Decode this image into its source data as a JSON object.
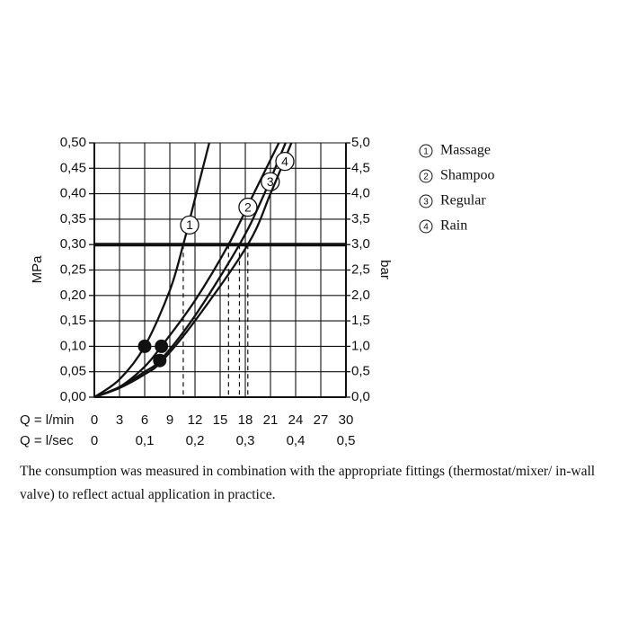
{
  "chart_data": {
    "type": "line",
    "y_label": "MPa",
    "y2_label": "bar",
    "x_label": "Q = l/min",
    "x2_label": "Q = l/sec",
    "xlim": [
      0,
      30
    ],
    "xticks": [
      0,
      3,
      6,
      9,
      12,
      15,
      18,
      21,
      24,
      27,
      30
    ],
    "x2lim": [
      0,
      0.5
    ],
    "x2ticks": [
      0,
      {
        "value": 0.1,
        "label": "0,1"
      },
      {
        "value": 0.2,
        "label": "0,2"
      },
      {
        "value": 0.3,
        "label": "0,3"
      },
      {
        "value": 0.4,
        "label": "0,4"
      },
      {
        "value": 0.5,
        "label": "0,5"
      }
    ],
    "ylim": [
      0,
      0.5
    ],
    "yticks": [
      {
        "value": 0,
        "label": "0,00"
      },
      {
        "value": 0.05,
        "label": "0,05"
      },
      {
        "value": 0.1,
        "label": "0,10"
      },
      {
        "value": 0.15,
        "label": "0,15"
      },
      {
        "value": 0.2,
        "label": "0,20"
      },
      {
        "value": 0.25,
        "label": "0,25"
      },
      {
        "value": 0.3,
        "label": "0,30"
      },
      {
        "value": 0.35,
        "label": "0,35"
      },
      {
        "value": 0.4,
        "label": "0,40"
      },
      {
        "value": 0.45,
        "label": "0,45"
      },
      {
        "value": 0.5,
        "label": "0,50"
      }
    ],
    "y2lim": [
      0,
      5
    ],
    "y2ticks": [
      {
        "value": 0,
        "label": "0,0"
      },
      {
        "value": 0.5,
        "label": "0,5"
      },
      {
        "value": 1,
        "label": "1,0"
      },
      {
        "value": 1.5,
        "label": "1,5"
      },
      {
        "value": 2,
        "label": "2,0"
      },
      {
        "value": 2.5,
        "label": "2,5"
      },
      {
        "value": 3,
        "label": "3,0"
      },
      {
        "value": 3.5,
        "label": "3,5"
      },
      {
        "value": 4,
        "label": "4,0"
      },
      {
        "value": 4.5,
        "label": "4,5"
      },
      {
        "value": 5,
        "label": "5,0"
      }
    ],
    "grid": true,
    "color": "#111111",
    "reference_line": 0.3,
    "dashed_x": [
      10.6,
      16,
      17.3,
      18.3
    ],
    "series": [
      {
        "name": "Massage",
        "label": "1",
        "x": [
          0,
          3,
          6,
          9,
          10.6,
          12,
          13.7
        ],
        "values": [
          0,
          0.035,
          0.1,
          0.21,
          0.3,
          0.39,
          0.5
        ]
      },
      {
        "name": "Shampoo",
        "label": "2",
        "x": [
          0,
          3,
          6,
          8,
          12,
          16,
          19,
          22
        ],
        "values": [
          0,
          0.02,
          0.06,
          0.1,
          0.19,
          0.3,
          0.4,
          0.5
        ]
      },
      {
        "name": "Regular",
        "label": "3",
        "x": [
          0,
          3,
          6,
          8,
          12,
          17.3,
          20,
          22.8
        ],
        "values": [
          0,
          0.02,
          0.05,
          0.075,
          0.16,
          0.3,
          0.39,
          0.5
        ]
      },
      {
        "name": "Rain",
        "label": "4",
        "x": [
          0,
          3,
          6,
          8,
          12,
          18.3,
          21,
          23.5
        ],
        "values": [
          0,
          0.018,
          0.045,
          0.07,
          0.15,
          0.3,
          0.4,
          0.5
        ]
      }
    ],
    "markers": [
      {
        "x": 6,
        "y": 0.1
      },
      {
        "x": 8,
        "y": 0.1
      },
      {
        "x": 7.8,
        "y": 0.072
      }
    ],
    "note": "The consumption was measured in combination with the appropriate fittings (thermostat/mixer/ in-wall valve) to reflect actual application in practice."
  }
}
